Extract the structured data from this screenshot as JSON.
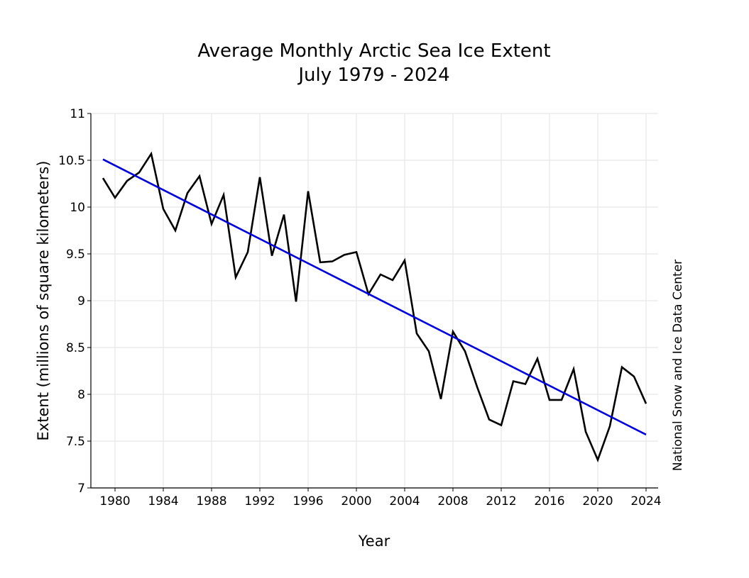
{
  "chart_data": {
    "type": "line",
    "title": "Average Monthly Arctic Sea Ice Extent",
    "subtitle": "July 1979 - 2024",
    "xlabel": "Year",
    "ylabel": "Extent (millions of square kilometers)",
    "credit": "National Snow and Ice Data Center",
    "xlim": [
      1978,
      2025
    ],
    "ylim": [
      7,
      11
    ],
    "grid": true,
    "x_ticks": [
      {
        "value": 1980,
        "label": "1980"
      },
      {
        "value": 1984,
        "label": "1984"
      },
      {
        "value": 1988,
        "label": "1988"
      },
      {
        "value": 1992,
        "label": "1992"
      },
      {
        "value": 1996,
        "label": "1996"
      },
      {
        "value": 2000,
        "label": "2000"
      },
      {
        "value": 2004,
        "label": "2004"
      },
      {
        "value": 2008,
        "label": "2008"
      },
      {
        "value": 2012,
        "label": "2012"
      },
      {
        "value": 2016,
        "label": "2016"
      },
      {
        "value": 2020,
        "label": "2020"
      },
      {
        "value": 2024,
        "label": "2024"
      }
    ],
    "y_ticks": [
      {
        "value": 7,
        "label": "7"
      },
      {
        "value": 7.5,
        "label": "7.5"
      },
      {
        "value": 8,
        "label": "8"
      },
      {
        "value": 8.5,
        "label": "8.5"
      },
      {
        "value": 9,
        "label": "9"
      },
      {
        "value": 9.5,
        "label": "9.5"
      },
      {
        "value": 10,
        "label": "10"
      },
      {
        "value": 10.5,
        "label": "10.5"
      },
      {
        "value": 11,
        "label": "11"
      }
    ],
    "series": [
      {
        "color": "#000000",
        "x": [
          1979,
          1980,
          1981,
          1982,
          1983,
          1984,
          1985,
          1986,
          1987,
          1988,
          1989,
          1990,
          1991,
          1992,
          1993,
          1994,
          1995,
          1996,
          1997,
          1998,
          1999,
          2000,
          2001,
          2002,
          2003,
          2004,
          2005,
          2006,
          2007,
          2008,
          2009,
          2010,
          2011,
          2012,
          2013,
          2014,
          2015,
          2016,
          2017,
          2018,
          2019,
          2020,
          2021,
          2022,
          2023,
          2024
        ],
        "values": [
          10.31,
          10.1,
          10.28,
          10.37,
          10.57,
          9.98,
          9.75,
          10.15,
          10.33,
          9.82,
          10.13,
          9.25,
          9.52,
          10.32,
          9.48,
          9.92,
          8.99,
          10.17,
          9.41,
          9.42,
          9.49,
          9.52,
          9.07,
          9.28,
          9.22,
          9.43,
          8.65,
          8.46,
          7.95,
          8.67,
          8.46,
          8.08,
          7.73,
          7.67,
          8.14,
          8.11,
          8.38,
          7.94,
          7.94,
          8.27,
          7.6,
          7.3,
          7.66,
          8.29,
          8.19,
          7.9
        ]
      },
      {
        "color": "#0000dd",
        "x": [
          1979,
          2024
        ],
        "values": [
          10.51,
          7.57
        ]
      }
    ]
  }
}
